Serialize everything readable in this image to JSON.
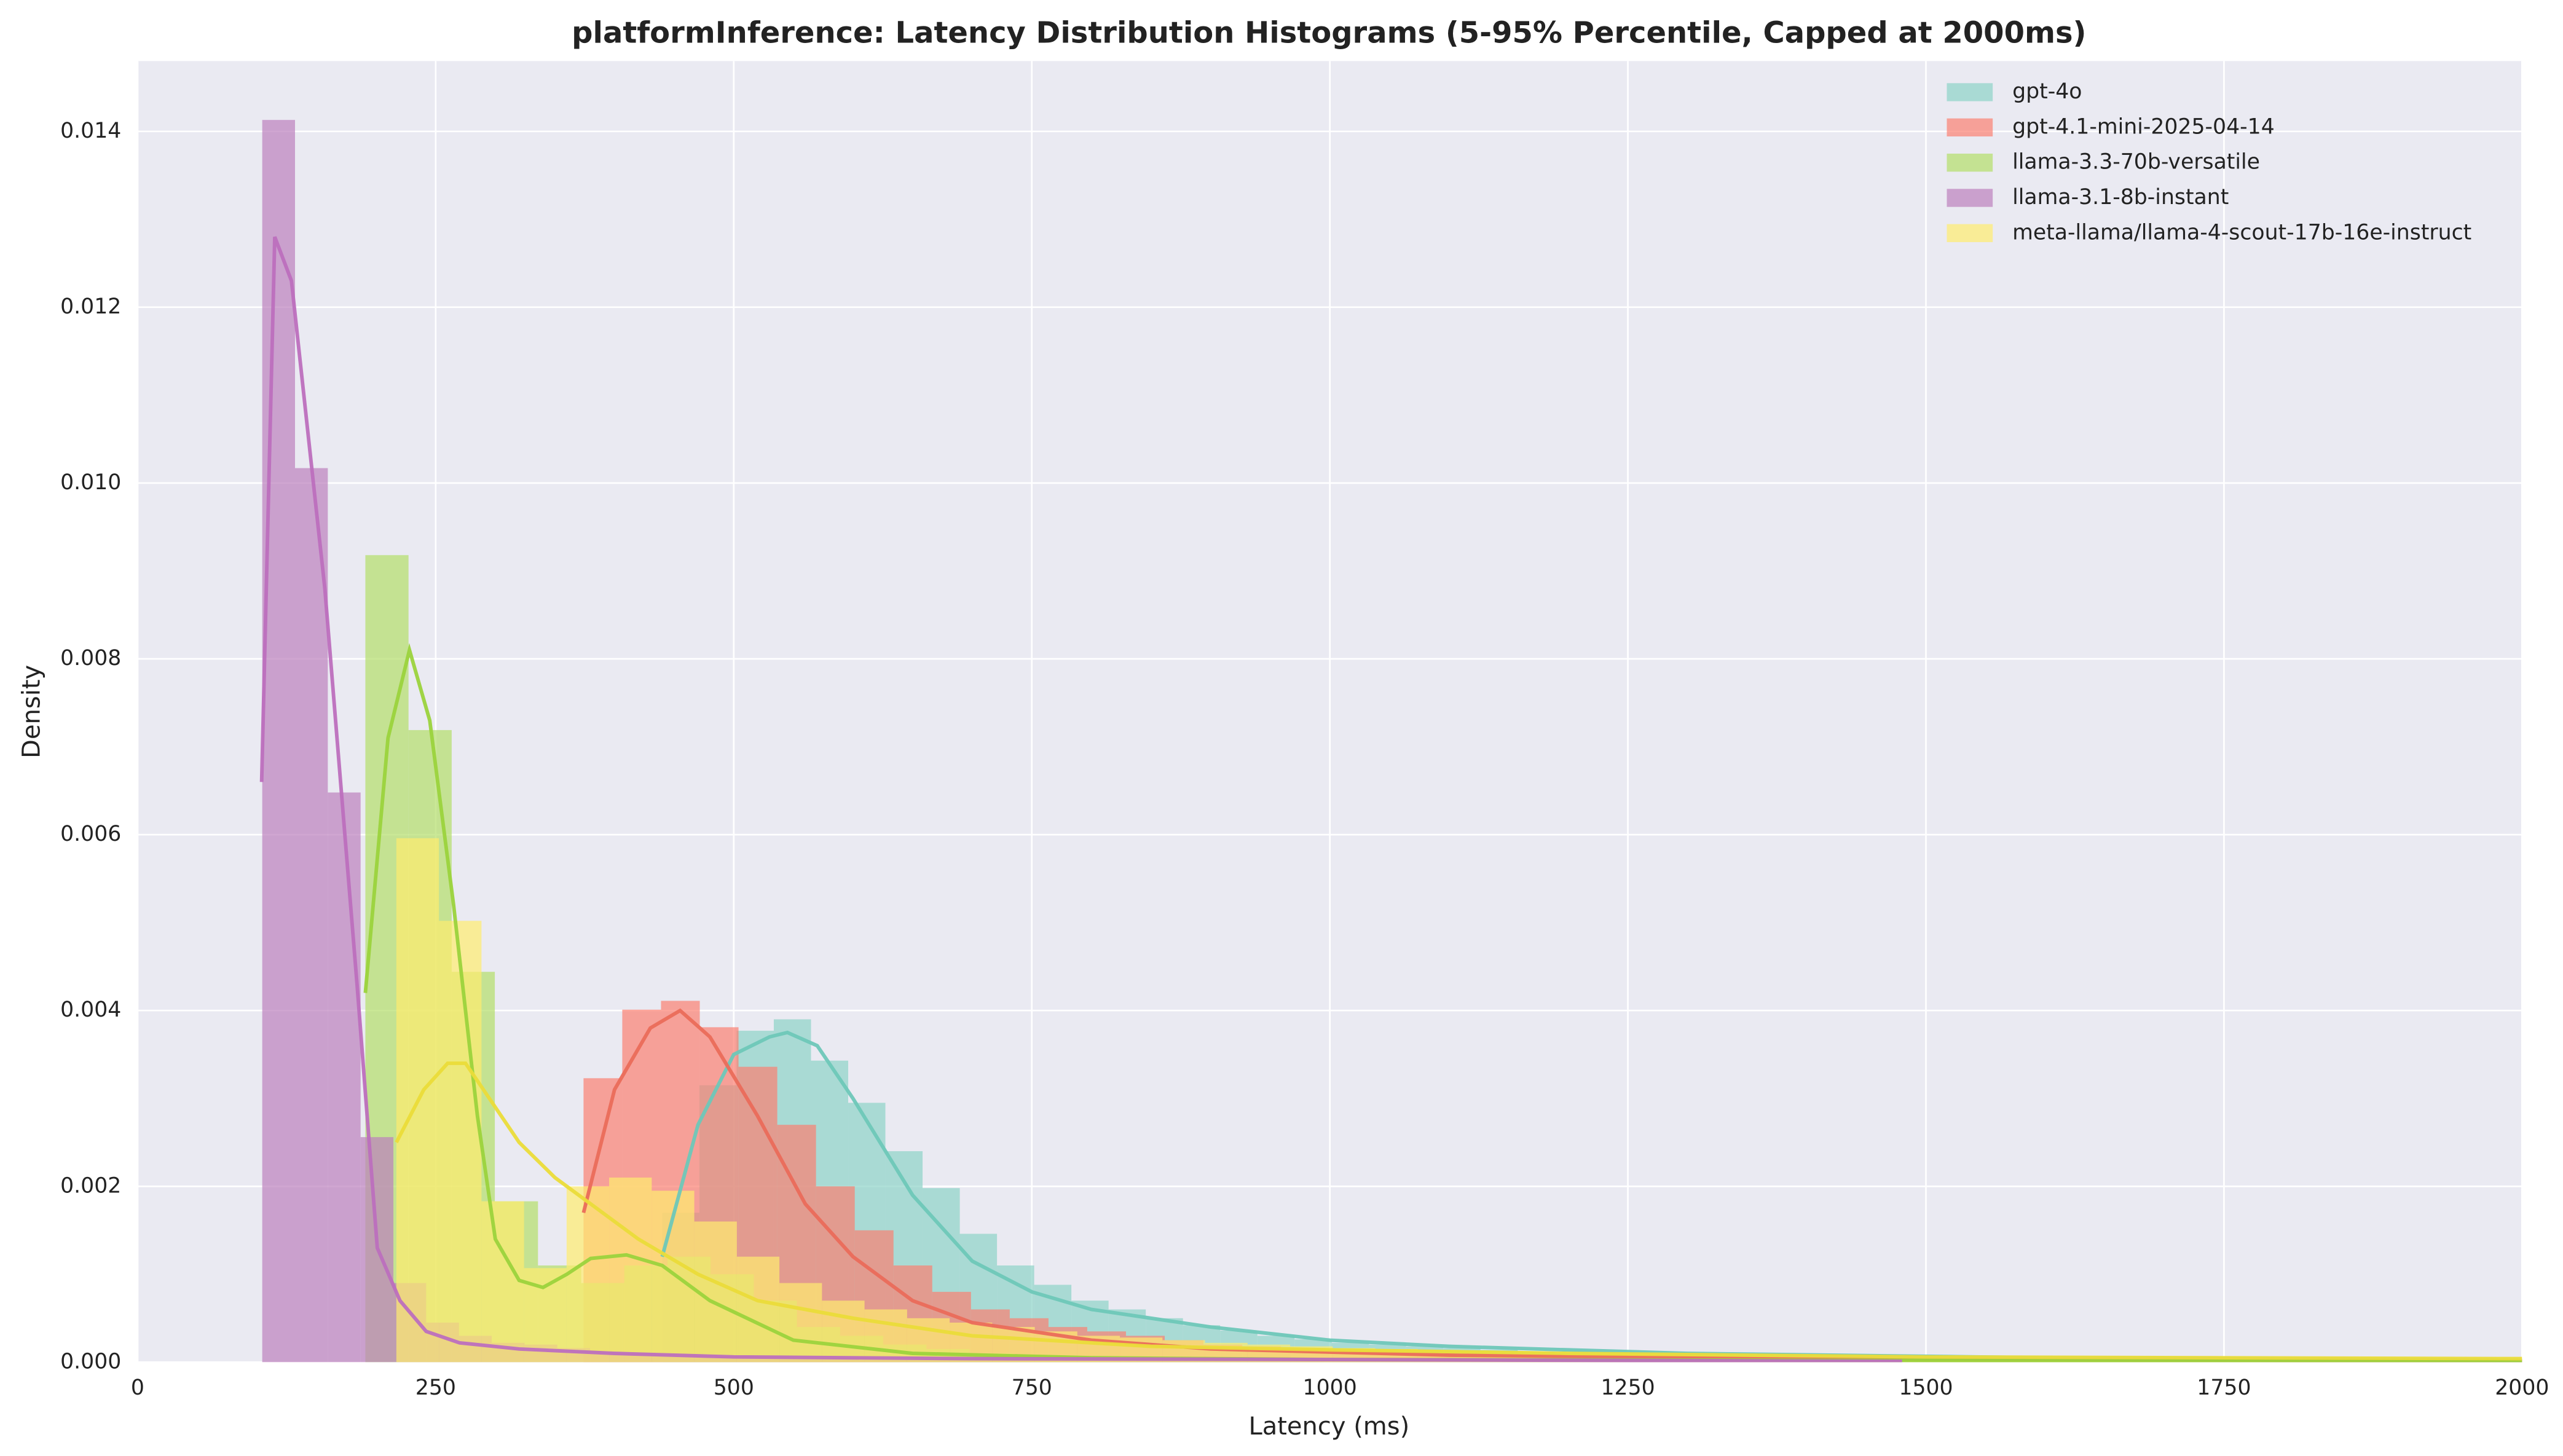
{
  "chart_data": {
    "type": "histogram",
    "title": "platformInference: Latency Distribution Histograms (5-95% Percentile, Capped at 2000ms)",
    "x_label": "Latency (ms)",
    "y_label": "Density",
    "xlim": [
      0,
      2000
    ],
    "ylim": [
      0,
      0.0148
    ],
    "xticks": [
      0,
      250,
      500,
      750,
      1000,
      1250,
      1500,
      1750,
      2000
    ],
    "yticks": [
      {
        "value": 0,
        "label": "0.000"
      },
      {
        "value": 0.002,
        "label": "0.002"
      },
      {
        "value": 0.004,
        "label": "0.004"
      },
      {
        "value": 0.006,
        "label": "0.006"
      },
      {
        "value": 0.008,
        "label": "0.008"
      },
      {
        "value": 0.01,
        "label": "0.010"
      },
      {
        "value": 0.012,
        "label": "0.012"
      },
      {
        "value": 0.014,
        "label": "0.014"
      }
    ],
    "grid": true,
    "legend": "upper right",
    "series": [
      {
        "name": "gpt-4o",
        "color": "#8dd3c7",
        "bins": [
          440,
          471.2,
          502.4,
          533.6,
          564.8,
          596,
          627.2,
          658.4,
          689.6,
          720.8,
          752,
          783.2,
          814.4,
          845.6,
          876.8,
          908,
          939.2,
          970.4,
          1001.6,
          1032.8,
          1064,
          1095.2,
          1126.4,
          1157.6,
          1188.8,
          1220,
          1251.2,
          1282.4,
          1313.6,
          1344.8,
          1376,
          1407.2,
          1438.4,
          1469.6,
          1500.8,
          1532,
          1563.2,
          1594.4,
          1625.6,
          1656.8,
          1688,
          1719.2,
          1750.4,
          1781.6,
          1812.8,
          1844,
          1875.2,
          1906.4,
          1937.6,
          1968.8,
          2000
        ],
        "values": [
          0.0017,
          0.00315,
          0.00377,
          0.0039,
          0.00343,
          0.00295,
          0.0024,
          0.00198,
          0.00146,
          0.0011,
          0.00088,
          0.0007,
          0.0006,
          0.0005,
          0.00042,
          0.00036,
          0.0003,
          0.00026,
          0.00022,
          0.0002,
          0.00018,
          0.00016,
          0.00014,
          0.00012,
          0.0001,
          9e-05,
          8e-05,
          7e-05,
          6e-05,
          5e-05,
          4e-05,
          4e-05,
          4e-05,
          4e-05,
          4e-05,
          4e-05,
          4e-05,
          4e-05,
          4e-05,
          4e-05,
          3e-05,
          3e-05,
          3e-05,
          3e-05,
          3e-05,
          3e-05,
          3e-05,
          3e-05,
          3e-05,
          3e-05
        ],
        "kde_x": [
          440,
          470,
          500,
          530,
          545,
          570,
          600,
          650,
          700,
          750,
          800,
          900,
          1000,
          1100,
          1300,
          1600,
          2000
        ],
        "kde_y": [
          0.0012,
          0.0027,
          0.0035,
          0.0037,
          0.00375,
          0.0036,
          0.003,
          0.0019,
          0.00115,
          0.0008,
          0.0006,
          0.0004,
          0.00025,
          0.00018,
          0.0001,
          5e-05,
          2e-05
        ]
      },
      {
        "name": "gpt-4.1-mini-2025-04-14",
        "color": "#fb8072",
        "bins": [
          374,
          406.5,
          439,
          471.5,
          504,
          536.5,
          569,
          601.5,
          634,
          666.5,
          699,
          731.5,
          764,
          796.5,
          829,
          861.5,
          894,
          926.5,
          959,
          991.5,
          1024,
          1056.5,
          1089,
          1121.5,
          1154,
          1186.5,
          1219,
          1251.5,
          1284,
          1316.5,
          1349,
          1381.5,
          1414,
          1446.5,
          1479,
          1511.5,
          1544,
          1576.5,
          1609,
          1641.5,
          1674,
          1706.5,
          1739,
          1771.5,
          1804,
          1836.5,
          1869,
          1901.5,
          1934,
          1966.5,
          1999
        ],
        "values": [
          0.00323,
          0.00401,
          0.00411,
          0.00381,
          0.00336,
          0.0027,
          0.002,
          0.0015,
          0.0011,
          0.0008,
          0.0006,
          0.0005,
          0.0004,
          0.00035,
          0.0003,
          0.00025,
          0.0002,
          0.00018,
          0.00015,
          0.00013,
          0.00012,
          0.0001,
          9e-05,
          8e-05,
          7e-05,
          6e-05,
          5e-05,
          5e-05,
          4e-05,
          4e-05,
          3e-05,
          3e-05,
          3e-05,
          3e-05,
          3e-05,
          3e-05,
          3e-05,
          3e-05,
          3e-05,
          3e-05,
          2e-05,
          2e-05,
          2e-05,
          2e-05,
          2e-05,
          2e-05,
          2e-05,
          2e-05,
          2e-05,
          2e-05
        ],
        "kde_x": [
          374,
          400,
          430,
          455,
          480,
          520,
          560,
          600,
          650,
          700,
          800,
          900,
          1100,
          1400,
          2000
        ],
        "kde_y": [
          0.0017,
          0.0031,
          0.0038,
          0.004,
          0.0037,
          0.0028,
          0.0018,
          0.0012,
          0.0007,
          0.00045,
          0.00025,
          0.00015,
          8e-05,
          4e-05,
          1e-05
        ]
      },
      {
        "name": "llama-3.3-70b-versatile",
        "color": "#b3de69",
        "bins": [
          191,
          227.2,
          263.4,
          299.6,
          335.8,
          372,
          408.2,
          444.4,
          480.6,
          516.8,
          553,
          589.2,
          625.4,
          661.6,
          697.8,
          734,
          770.2,
          806.4,
          842.6,
          878.8,
          915,
          951.2,
          987.4,
          1023.6,
          1059.8,
          1096,
          1132.2,
          1168.4,
          1204.6,
          1240.8,
          1277,
          1313.2,
          1349.4,
          1385.6,
          1421.8,
          1458,
          1494.2,
          1530.4,
          1566.6,
          1602.8,
          1639,
          1675.2,
          1711.4,
          1747.6,
          1783.8,
          1820,
          1856.2,
          1892.4,
          1928.6,
          1964.8,
          2001
        ],
        "values": [
          0.00918,
          0.00719,
          0.00444,
          0.00183,
          0.0011,
          0.0009,
          0.0011,
          0.0012,
          0.001,
          0.0007,
          0.0004,
          0.0003,
          0.0002,
          0.00015,
          0.0001,
          8e-05,
          6e-05,
          5e-05,
          4e-05,
          4e-05,
          3e-05,
          3e-05,
          3e-05,
          3e-05,
          3e-05,
          3e-05,
          3e-05,
          3e-05,
          3e-05,
          3e-05,
          2e-05,
          2e-05,
          2e-05,
          2e-05,
          2e-05,
          2e-05,
          2e-05,
          2e-05,
          2e-05,
          2e-05,
          1e-05,
          1e-05,
          1e-05,
          1e-05,
          1e-05,
          1e-05,
          1e-05,
          1e-05,
          1e-05,
          1e-05
        ],
        "kde_x": [
          191,
          210,
          228,
          245,
          265,
          285,
          300,
          320,
          340,
          360,
          380,
          410,
          440,
          480,
          550,
          650,
          800,
          1000,
          1500,
          2000
        ],
        "kde_y": [
          0.0042,
          0.0071,
          0.0081,
          0.0073,
          0.0052,
          0.0028,
          0.0014,
          0.00093,
          0.00085,
          0.001,
          0.00118,
          0.00122,
          0.0011,
          0.0007,
          0.00025,
          0.0001,
          5e-05,
          3e-05,
          2e-05,
          1e-05
        ]
      },
      {
        "name": "llama-3.1-8b-instant",
        "color": "#bc80bd",
        "bins": [
          104.5,
          132,
          159.5,
          187,
          214.5,
          242,
          269.5,
          297,
          324.5,
          352,
          379.5,
          407,
          434.5,
          462,
          489.5,
          517,
          544.5,
          572,
          599.5,
          627,
          654.5,
          682,
          709.5,
          737,
          764.5,
          792,
          819.5,
          847,
          874.5,
          902,
          929.5,
          957,
          984.5,
          1012,
          1039.5,
          1067,
          1094.5,
          1122,
          1149.5,
          1177,
          1204.5,
          1232,
          1259.5,
          1287,
          1314.5,
          1342,
          1369.5,
          1397,
          1424.5,
          1452,
          1479.5
        ],
        "values": [
          0.01413,
          0.01017,
          0.00648,
          0.00256,
          0.0009,
          0.00045,
          0.0003,
          0.00022,
          0.0002,
          0.00016,
          0.00012,
          0.0001,
          8e-05,
          8e-05,
          6e-05,
          5e-05,
          5e-05,
          4e-05,
          4e-05,
          3e-05,
          3e-05,
          3e-05,
          2e-05,
          2e-05,
          2e-05,
          2e-05,
          2e-05,
          2e-05,
          1e-05,
          1e-05,
          1e-05,
          1e-05,
          1e-05,
          1e-05,
          1e-05,
          1e-05,
          1e-05,
          1e-05,
          1e-05,
          1e-05,
          1e-05,
          1e-05,
          1e-05,
          1e-05,
          1e-05,
          1e-05,
          1e-05,
          1e-05,
          1e-05,
          1e-05
        ],
        "kde_x": [
          104,
          115,
          129,
          157,
          184,
          201,
          220,
          242,
          270,
          320,
          400,
          500,
          700,
          1000,
          1480
        ],
        "kde_y": [
          0.0066,
          0.0128,
          0.0123,
          0.0088,
          0.0043,
          0.0013,
          0.0007,
          0.00035,
          0.00022,
          0.00015,
          0.0001,
          6e-05,
          4e-05,
          3e-05,
          1e-05
        ]
      },
      {
        "name": "meta-llama/llama-4-scout-17b-16e-instruct",
        "color": "#ffed6f",
        "bins": [
          217,
          252.7,
          288.4,
          324.1,
          359.8,
          395.5,
          431.2,
          466.9,
          502.6,
          538.3,
          574,
          609.7,
          645.4,
          681.1,
          716.8,
          752.5,
          788.2,
          823.9,
          859.6,
          895.3,
          931,
          966.7,
          1002.4,
          1038.1,
          1073.8,
          1109.5,
          1145.2,
          1180.9,
          1216.6,
          1252.3,
          1288,
          1323.7,
          1359.4,
          1395.1,
          1430.8,
          1466.5,
          1502.2,
          1537.9,
          1573.6,
          1609.3,
          1645,
          1680.7,
          1716.4,
          1752.1,
          1787.8,
          1823.5,
          1859.2,
          1894.9,
          1930.6,
          1966.3,
          2002
        ],
        "values": [
          0.00596,
          0.00502,
          0.00183,
          0.00107,
          0.002,
          0.0021,
          0.00195,
          0.0016,
          0.0012,
          0.0009,
          0.0007,
          0.0006,
          0.0005,
          0.00045,
          0.0004,
          0.00035,
          0.0003,
          0.00028,
          0.00025,
          0.00022,
          0.0002,
          0.00018,
          0.00016,
          0.00015,
          0.00014,
          0.00013,
          0.00012,
          0.00011,
          0.0001,
          0.0001,
          9e-05,
          9e-05,
          8e-05,
          8e-05,
          7e-05,
          7e-05,
          6e-05,
          6e-05,
          6e-05,
          5e-05,
          5e-05,
          5e-05,
          5e-05,
          4e-05,
          4e-05,
          4e-05,
          4e-05,
          4e-05,
          4e-05,
          4e-05
        ],
        "kde_x": [
          217,
          240,
          260,
          275,
          290,
          320,
          350,
          380,
          420,
          470,
          520,
          600,
          700,
          850,
          1000,
          1200,
          1500,
          2000
        ],
        "kde_y": [
          0.0025,
          0.0031,
          0.0034,
          0.0034,
          0.0031,
          0.0025,
          0.0021,
          0.0018,
          0.0014,
          0.001,
          0.0007,
          0.0005,
          0.0003,
          0.00018,
          0.00014,
          0.0001,
          6e-05,
          4e-05
        ]
      }
    ]
  }
}
